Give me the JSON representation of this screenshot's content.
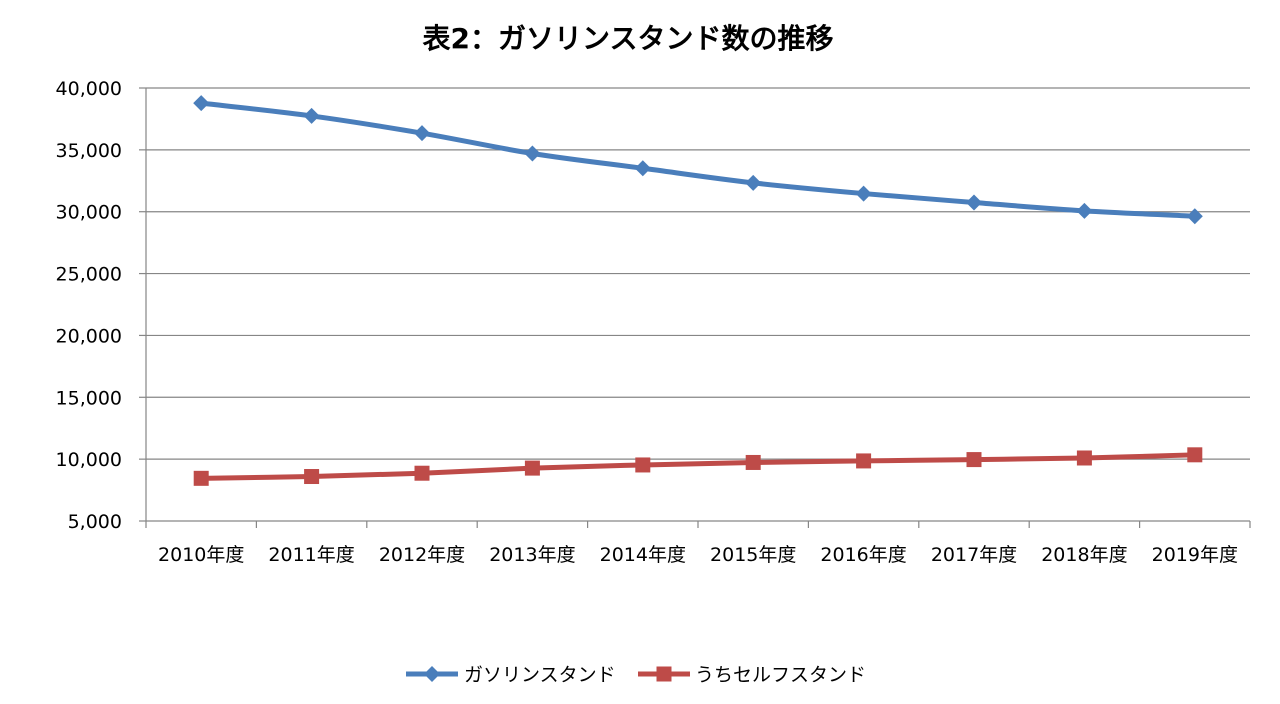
{
  "chart_data": {
    "type": "line",
    "title": "表2：ガソリンスタンド数の推移",
    "xlabel": "",
    "ylabel": "",
    "categories": [
      "2010年度",
      "2011年度",
      "2012年度",
      "2013年度",
      "2014年度",
      "2015年度",
      "2016年度",
      "2017年度",
      "2018年度",
      "2019年度"
    ],
    "ylim": [
      5000,
      40000
    ],
    "y_ticks": [
      5000,
      10000,
      15000,
      20000,
      25000,
      30000,
      35000,
      40000
    ],
    "y_tick_labels": [
      "5,000",
      "10,000",
      "15,000",
      "20,000",
      "25,000",
      "30,000",
      "35,000",
      "40,000"
    ],
    "grid": true,
    "legend_position": "bottom",
    "series": [
      {
        "name": "ガソリンスタンド",
        "color": "#4a7ebb",
        "marker": "diamond",
        "values": [
          38777,
          37743,
          36349,
          34706,
          33510,
          32333,
          31467,
          30747,
          30070,
          29637
        ]
      },
      {
        "name": "うちセルフスタンド",
        "color": "#be4b48",
        "marker": "square",
        "values": [
          8449,
          8596,
          8862,
          9275,
          9530,
          9732,
          9856,
          9964,
          10093,
          10350
        ]
      }
    ]
  }
}
